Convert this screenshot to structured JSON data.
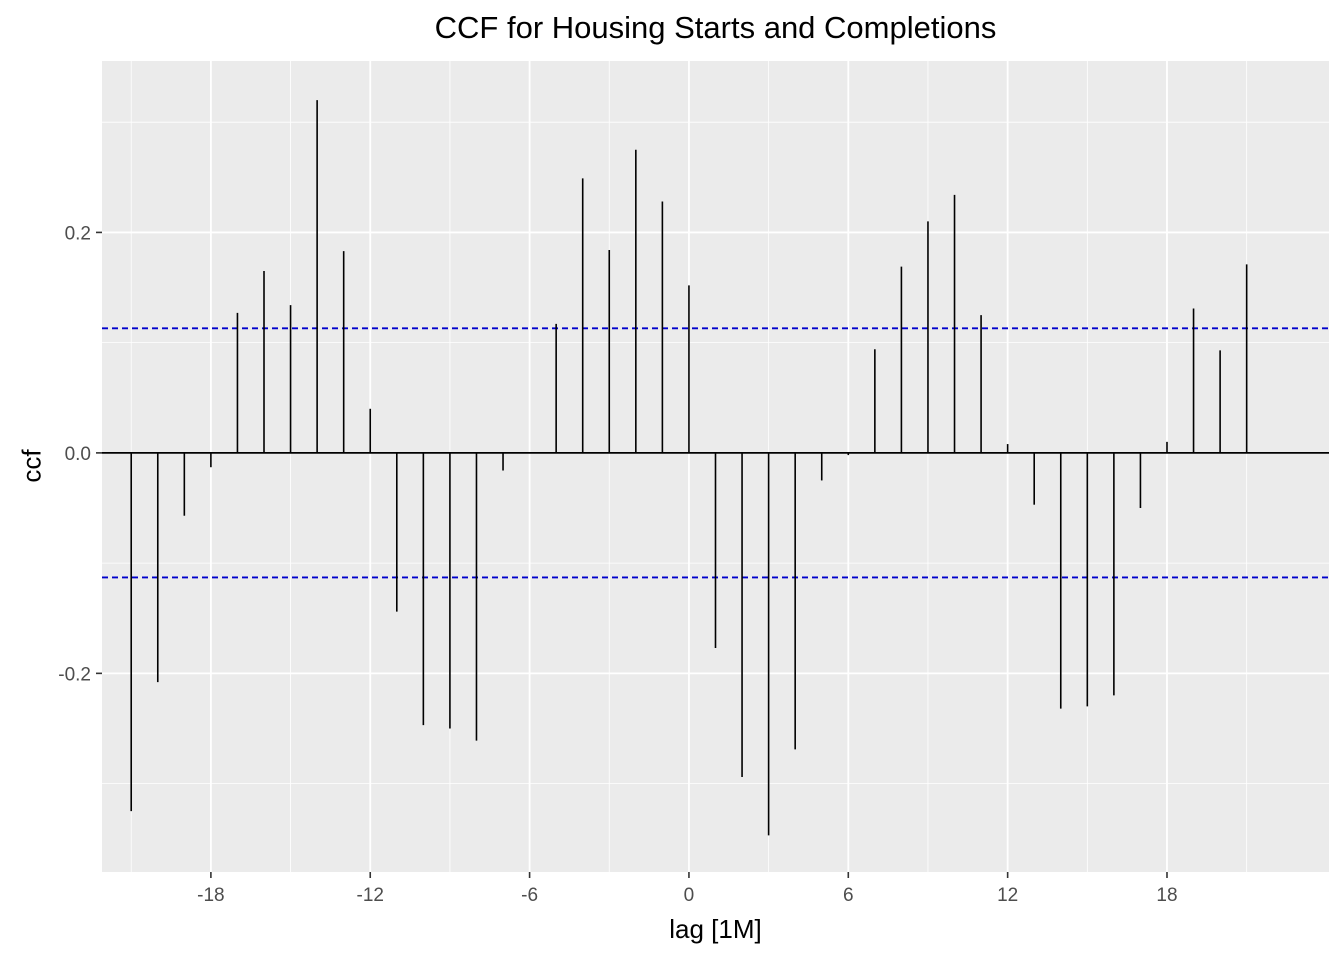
{
  "chart_data": {
    "type": "bar",
    "title": "CCF for Housing Starts and Completions",
    "xlabel": "lag [1M]",
    "ylabel": "ccf",
    "xlim": [
      -22.1,
      24.1
    ],
    "ylim": [
      -0.3802,
      0.3555
    ],
    "x_ticks": [
      -18,
      -12,
      -6,
      0,
      6,
      12,
      18
    ],
    "x_tick_labels": [
      "-18",
      "-12",
      "-6",
      "0",
      "6",
      "12",
      "18"
    ],
    "y_ticks": [
      -0.2,
      0.0,
      0.2
    ],
    "y_tick_labels": [
      "-0.2",
      "0.0",
      "0.2"
    ],
    "grid": true,
    "confidence_limit": 0.113,
    "colors": {
      "panel": "#ebebeb",
      "grid": "#ffffff",
      "bars": "#000000",
      "confidence_line": "#0000cc"
    },
    "x": [
      -21,
      -20,
      -19,
      -18,
      -17,
      -16,
      -15,
      -14,
      -13,
      -12,
      -11,
      -10,
      -9,
      -8,
      -7,
      -6,
      -5,
      -4,
      -3,
      -2,
      -1,
      0,
      1,
      2,
      3,
      4,
      5,
      6,
      7,
      8,
      9,
      10,
      11,
      12,
      13,
      14,
      15,
      16,
      17,
      18,
      19,
      20,
      21
    ],
    "values": [
      -0.325,
      -0.208,
      -0.057,
      -0.013,
      0.127,
      0.165,
      0.134,
      0.32,
      0.183,
      0.04,
      -0.144,
      -0.247,
      -0.25,
      -0.261,
      -0.016,
      0.0,
      0.117,
      0.249,
      0.184,
      0.275,
      0.228,
      0.152,
      -0.177,
      -0.294,
      -0.347,
      -0.269,
      -0.025,
      -0.002,
      0.094,
      0.169,
      0.21,
      0.234,
      0.125,
      0.008,
      -0.047,
      -0.232,
      -0.23,
      -0.22,
      -0.05,
      0.01,
      0.131,
      0.093,
      0.171
    ]
  }
}
